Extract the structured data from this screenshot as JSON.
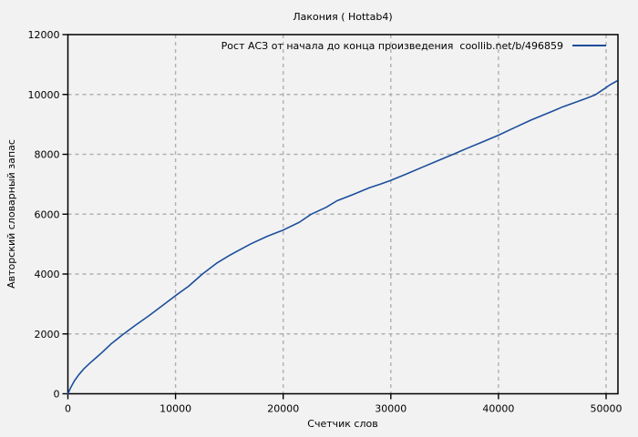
{
  "page": {
    "background": "#f2f2f2"
  },
  "chart_data": {
    "type": "line",
    "title": "Лакония ( Hottab4)",
    "xlabel": "Счетчик слов",
    "ylabel": "Авторский словарный запас",
    "xlim": [
      0,
      51100
    ],
    "ylim": [
      0,
      12000
    ],
    "x_ticks": [
      0,
      10000,
      20000,
      30000,
      40000,
      50000
    ],
    "y_ticks": [
      0,
      2000,
      4000,
      6000,
      8000,
      10000,
      12000
    ],
    "grid": true,
    "legend": {
      "label": "Рост АСЗ от начала до конца произведения  coollib.net/b/496859",
      "position": "top-right-inside"
    },
    "colors": {
      "line": "#1b4e9b",
      "grid": "#b0b0b0",
      "border": "#000000",
      "text": "#000000",
      "background": "#f2f2f2"
    },
    "series": [
      {
        "name": "Рост АСЗ от начала до конца произведения coollib.net/b/496859",
        "color": "#1b4e9b",
        "points": [
          [
            0,
            0
          ],
          [
            250,
            200
          ],
          [
            600,
            430
          ],
          [
            1000,
            630
          ],
          [
            1500,
            840
          ],
          [
            2000,
            1010
          ],
          [
            2600,
            1200
          ],
          [
            3200,
            1390
          ],
          [
            4000,
            1660
          ],
          [
            5000,
            1950
          ],
          [
            6200,
            2270
          ],
          [
            7500,
            2600
          ],
          [
            8800,
            2950
          ],
          [
            10000,
            3280
          ],
          [
            11200,
            3590
          ],
          [
            12500,
            4000
          ],
          [
            13800,
            4360
          ],
          [
            15000,
            4620
          ],
          [
            15800,
            4780
          ],
          [
            17000,
            5010
          ],
          [
            18500,
            5260
          ],
          [
            20000,
            5470
          ],
          [
            21500,
            5730
          ],
          [
            22600,
            6000
          ],
          [
            24000,
            6230
          ],
          [
            25000,
            6450
          ],
          [
            26500,
            6660
          ],
          [
            28000,
            6880
          ],
          [
            29000,
            7000
          ],
          [
            30000,
            7130
          ],
          [
            31500,
            7350
          ],
          [
            33000,
            7580
          ],
          [
            34000,
            7730
          ],
          [
            35000,
            7880
          ],
          [
            35800,
            8000
          ],
          [
            37000,
            8190
          ],
          [
            38500,
            8410
          ],
          [
            40000,
            8640
          ],
          [
            41500,
            8890
          ],
          [
            43000,
            9140
          ],
          [
            44000,
            9290
          ],
          [
            45000,
            9440
          ],
          [
            46000,
            9590
          ],
          [
            47000,
            9720
          ],
          [
            48000,
            9850
          ],
          [
            49000,
            9990
          ],
          [
            49800,
            10180
          ],
          [
            50400,
            10330
          ],
          [
            51000,
            10450
          ]
        ]
      }
    ]
  }
}
